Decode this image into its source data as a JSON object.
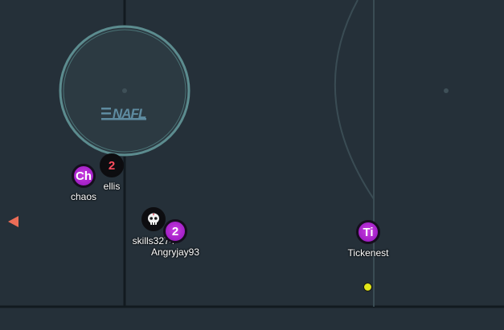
{
  "field": {
    "background_color": "#253039",
    "line_color": "#121a20",
    "faint_line_color": "#3a4c54",
    "center_circle_color": "#5c8c8f",
    "logo_color": "#5e8ba0",
    "logo_text": "NAFL"
  },
  "players": [
    {
      "id": "chaos",
      "name": "chaos",
      "avatar": "Ch",
      "team": "purple"
    },
    {
      "id": "ellis",
      "name": "ellis",
      "avatar": "2",
      "team": "black"
    },
    {
      "id": "skills",
      "name": "skills3274",
      "avatar": "skull-icon",
      "team": "black"
    },
    {
      "id": "angryjay",
      "name": "Angryjay93",
      "avatar": "2",
      "team": "purple"
    },
    {
      "id": "tickenest",
      "name": "Tickenest",
      "avatar": "Ti",
      "team": "purple"
    }
  ],
  "ball": {
    "color": "#e2e619"
  },
  "offscreen_indicator": {
    "color": "#ec6d57",
    "icon": "left-arrow-icon"
  }
}
